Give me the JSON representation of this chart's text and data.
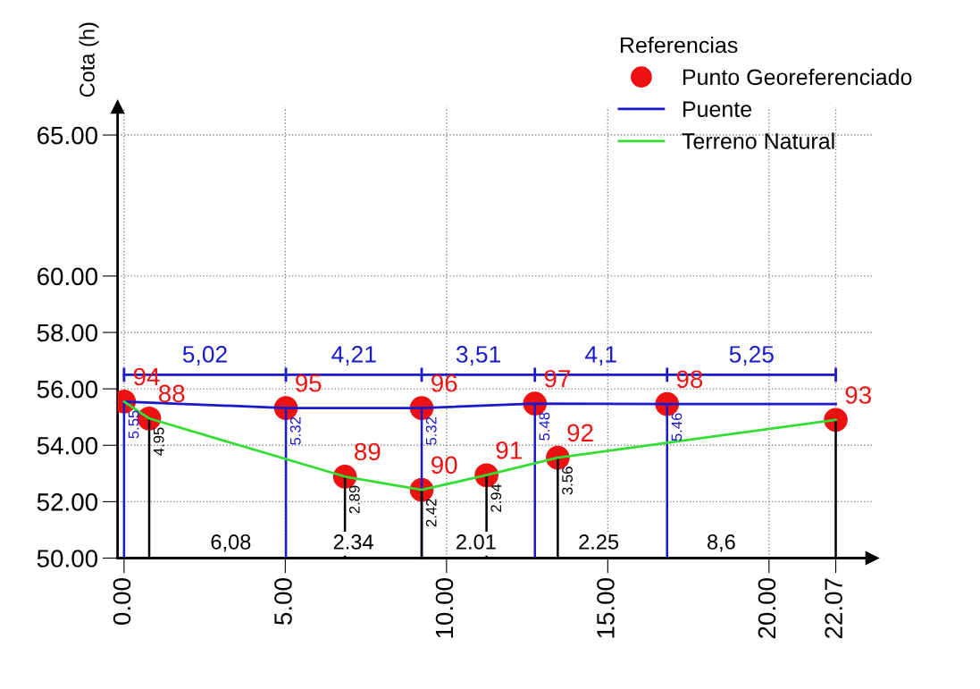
{
  "chart_data": {
    "type": "line",
    "ylabel": "Cota (h)",
    "legend_title": "Referencias",
    "legend": "top right",
    "grid": true,
    "xlim": [
      -0.2,
      23.2
    ],
    "ylim": [
      50,
      66
    ],
    "xticks": [
      {
        "value": 0,
        "label": "0.00"
      },
      {
        "value": 5,
        "label": "5.00"
      },
      {
        "value": 10,
        "label": "10.00"
      },
      {
        "value": 15,
        "label": "15.00"
      },
      {
        "value": 20,
        "label": "20.00"
      },
      {
        "value": 22.07,
        "label": "22.07"
      }
    ],
    "yticks": [
      {
        "value": 50,
        "label": "50.00"
      },
      {
        "value": 52,
        "label": "52.00"
      },
      {
        "value": 54,
        "label": "54.00"
      },
      {
        "value": 56,
        "label": "56.00"
      },
      {
        "value": 58,
        "label": "58.00"
      },
      {
        "value": 60,
        "label": "60.00"
      },
      {
        "value": 65,
        "label": "65.00"
      }
    ],
    "series": [
      {
        "type": "bar",
        "color": "#1a1acc",
        "x": [
          0,
          5.02,
          9.23,
          12.74,
          16.84
        ],
        "base": [
          50,
          50,
          50,
          50,
          50
        ],
        "values": [
          5.55,
          5.32,
          5.32,
          5.48,
          5.46
        ],
        "value_labels": [
          "5.55",
          "5.32",
          "5.32",
          "5.48",
          "5.46"
        ]
      },
      {
        "type": "bar",
        "color": "#000000",
        "x": [
          0.78,
          6.85,
          9.23,
          11.24,
          13.45,
          22.07
        ],
        "base": [
          50,
          50,
          50,
          50,
          50,
          50
        ],
        "values": [
          4.95,
          2.89,
          2.42,
          2.94,
          3.56,
          4.9
        ],
        "value_labels": [
          "4.95",
          "2.89",
          "2.42",
          "2.94",
          "3.56",
          null
        ]
      },
      {
        "color": "#1a1acc",
        "marker": "none",
        "x": [
          0,
          5.02,
          9.23,
          12.74,
          16.84,
          22.07
        ],
        "values": [
          56.5,
          56.5,
          56.5,
          56.5,
          56.5,
          56.5
        ],
        "errors": [
          0.25,
          0.25,
          0.25,
          0.25,
          0.25,
          0.25
        ]
      },
      {
        "name": "Punto Georeferenciado",
        "type": "scatter",
        "color": "#ee1111",
        "marker": "circle",
        "x": [
          0,
          0.78,
          5.02,
          6.85,
          9.23,
          9.23,
          11.24,
          12.74,
          13.45,
          16.84,
          22.07
        ],
        "values": [
          55.55,
          54.95,
          55.32,
          52.89,
          55.32,
          52.42,
          52.94,
          55.48,
          53.56,
          55.46,
          54.9
        ]
      },
      {
        "name": "Puente",
        "color": "#1a1acc",
        "marker": "none",
        "x": [
          0,
          5.02,
          9.23,
          12.74,
          16.84,
          22.07
        ],
        "values": [
          55.55,
          55.32,
          55.32,
          55.48,
          55.46,
          55.46
        ]
      },
      {
        "name": "Terreno Natural",
        "color": "#33dd33",
        "marker": "none",
        "x": [
          0,
          0.78,
          6.85,
          9.23,
          11.24,
          13.45,
          22.07
        ],
        "values": [
          55.55,
          54.95,
          52.89,
          52.42,
          52.94,
          53.56,
          54.9
        ]
      }
    ],
    "annotations": [
      {
        "text": "94",
        "x": 0,
        "y": 55.55
      },
      {
        "text": "88",
        "x": 0.78,
        "y": 54.95
      },
      {
        "text": "95",
        "x": 5.02,
        "y": 55.32
      },
      {
        "text": "89",
        "x": 6.85,
        "y": 52.89
      },
      {
        "text": "96",
        "x": 9.23,
        "y": 55.32
      },
      {
        "text": "90",
        "x": 9.23,
        "y": 52.42
      },
      {
        "text": "91",
        "x": 11.24,
        "y": 52.94
      },
      {
        "text": "97",
        "x": 12.74,
        "y": 55.48
      },
      {
        "text": "92",
        "x": 13.45,
        "y": 53.56
      },
      {
        "text": "98",
        "x": 16.84,
        "y": 55.46
      },
      {
        "text": "93",
        "x": 22.07,
        "y": 54.9
      },
      {
        "text": "5,02",
        "x": 2.51,
        "y": 56.5
      },
      {
        "text": "4,21",
        "x": 7.13,
        "y": 56.5
      },
      {
        "text": "3,51",
        "x": 10.99,
        "y": 56.5
      },
      {
        "text": "4,1",
        "x": 14.79,
        "y": 56.5
      },
      {
        "text": "5,25",
        "x": 19.46,
        "y": 56.5
      },
      "6,08",
      "2.34",
      "2.01",
      "2.25",
      "8,6"
    ]
  }
}
